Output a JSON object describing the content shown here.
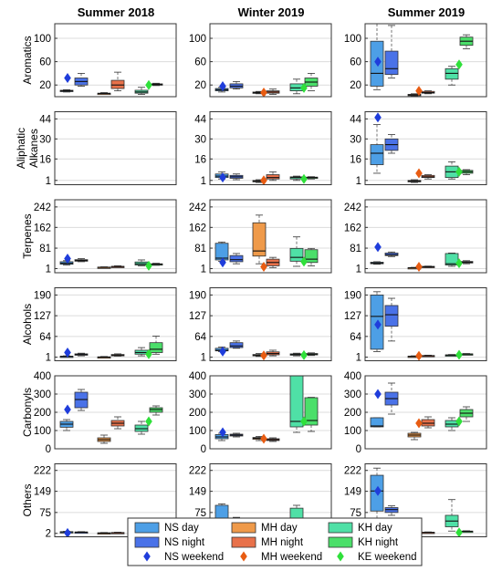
{
  "chart_data": {
    "type": "box",
    "columns": [
      "Summer 2018",
      "Winter 2019",
      "Summer 2019"
    ],
    "groups": [
      "NS day",
      "NS night",
      "MH day",
      "MH night",
      "KH day",
      "KH night"
    ],
    "weekend_markers": [
      "NS weekend",
      "MH weekend",
      "KE weekend"
    ],
    "colors": {
      "NS day": "#4d9fe6",
      "NS night": "#4a72e8",
      "MH day": "#ef9a4a",
      "MH night": "#e8714a",
      "KH day": "#4fe0a6",
      "KH night": "#4bdf6a",
      "NS weekend": "#1f3ddb",
      "MH weekend": "#e85c12",
      "KE weekend": "#2fe03a"
    },
    "panels": [
      {
        "label": "Aromatics",
        "yticks": [
          20,
          60,
          100
        ],
        "tick_labels": [
          "20",
          "60",
          "100"
        ],
        "ylim": [
          0,
          125
        ],
        "cells": [
          {
            "boxes": [
              [
                8,
                9,
                10,
                11,
                12
              ],
              [
                18,
                20,
                26,
                32,
                40
              ],
              [
                4,
                5,
                5.5,
                6,
                7
              ],
              [
                10,
                14,
                20,
                28,
                42
              ],
              [
                4,
                6,
                8,
                11,
                16
              ],
              [
                19,
                20,
                21,
                22,
                23
              ]
            ],
            "weekend": [
              32,
              null,
              20
            ]
          },
          {
            "boxes": [
              [
                8,
                10,
                12,
                14,
                16
              ],
              [
                13,
                15,
                18,
                22,
                26
              ],
              [
                5,
                6,
                7,
                8,
                9
              ],
              [
                4,
                6,
                8,
                10,
                13
              ],
              [
                5,
                10,
                15,
                22,
                30
              ],
              [
                10,
                18,
                25,
                32,
                40
              ]
            ],
            "weekend": [
              18,
              7,
              15
            ]
          },
          {
            "boxes": [
              [
                12,
                18,
                40,
                95,
                125
              ],
              [
                32,
                38,
                48,
                78,
                122
              ],
              [
                1,
                2,
                3,
                4,
                5
              ],
              [
                5,
                6,
                7,
                9,
                10
              ],
              [
                20,
                30,
                40,
                48,
                52
              ],
              [
                82,
                88,
                95,
                102,
                106
              ]
            ],
            "weekend": [
              60,
              10,
              55
            ]
          }
        ]
      },
      {
        "label": "Aliphatic Alkanes",
        "yticks": [
          1,
          16,
          30,
          44
        ],
        "tick_labels": [
          "1",
          "16",
          "30",
          "44"
        ],
        "ylim": [
          -2,
          49
        ],
        "cells": [
          {
            "boxes": [
              null,
              null,
              null,
              null,
              null,
              null
            ],
            "weekend": [
              null,
              null,
              null
            ]
          },
          {
            "boxes": [
              [
                2,
                3,
                4,
                5.5,
                7
              ],
              [
                1.5,
                2.5,
                3.5,
                4.5,
                5.5
              ],
              [
                -0.5,
                0,
                0.5,
                1,
                1.5
              ],
              [
                1,
                2,
                3,
                5,
                7
              ],
              [
                1,
                2,
                3,
                3.5,
                4
              ],
              [
                2,
                2.5,
                3,
                3.3,
                3.6
              ]
            ],
            "weekend": [
              3,
              1,
              2
            ]
          },
          {
            "boxes": [
              [
                6,
                12,
                20,
                26,
                40
              ],
              [
                20,
                22,
                26,
                30,
                33
              ],
              [
                -0.5,
                0,
                0.5,
                1,
                1.5
              ],
              [
                2,
                3,
                3.5,
                4.5,
                5
              ],
              [
                2,
                3,
                7,
                11,
                14
              ],
              [
                5,
                6,
                7,
                8,
                8.5
              ]
            ],
            "weekend": [
              45,
              6,
              7
            ]
          }
        ]
      },
      {
        "label": "Terpenes",
        "yticks": [
          1,
          81,
          162,
          242
        ],
        "tick_labels": [
          "1",
          "81",
          "162",
          "242"
        ],
        "ylim": [
          -15,
          270
        ],
        "cells": [
          {
            "boxes": [
              [
                15,
                18,
                22,
                28,
                32
              ],
              [
                28,
                30,
                33,
                36,
                40
              ],
              [
                4,
                5,
                6,
                7,
                8
              ],
              [
                7,
                8,
                9,
                10,
                12
              ],
              [
                12,
                15,
                20,
                27,
                35
              ],
              [
                14,
                16,
                18,
                20,
                22
              ]
            ],
            "weekend": [
              40,
              null,
              12
            ]
          },
          {
            "boxes": [
              [
                30,
                35,
                42,
                100,
                105
              ],
              [
                20,
                28,
                36,
                52,
                60
              ],
              [
                20,
                50,
                70,
                180,
                210
              ],
              [
                5,
                12,
                25,
                38,
                45
              ],
              [
                10,
                30,
                45,
                80,
                125
              ],
              [
                12,
                25,
                38,
                75,
                80
              ]
            ],
            "weekend": [
              25,
              8,
              28
            ]
          },
          {
            "boxes": [
              [
                18,
                20,
                23,
                26,
                28
              ],
              [
                48,
                52,
                55,
                62,
                66
              ],
              [
                2,
                3,
                4,
                5,
                6
              ],
              [
                5,
                7,
                8,
                10,
                11
              ],
              [
                10,
                15,
                20,
                60,
                62
              ],
              [
                20,
                23,
                26,
                29,
                32
              ]
            ],
            "weekend": [
              85,
              8,
              22
            ]
          }
        ]
      },
      {
        "label": "Alcohols",
        "yticks": [
          1,
          64,
          127,
          190
        ],
        "tick_labels": [
          "1",
          "64",
          "127",
          "190"
        ],
        "ylim": [
          -10,
          212
        ],
        "cells": [
          {
            "boxes": [
              [
                1,
                2,
                3,
                4,
                5
              ],
              [
                5,
                7,
                9,
                11,
                13
              ],
              [
                -1,
                0,
                1,
                2,
                3
              ],
              [
                4,
                5,
                7,
                9,
                11
              ],
              [
                5,
                10,
                15,
                22,
                30
              ],
              [
                10,
                15,
                25,
                45,
                65
              ]
            ],
            "weekend": [
              15,
              null,
              10
            ]
          },
          {
            "boxes": [
              [
                18,
                20,
                22,
                28,
                32
              ],
              [
                28,
                30,
                35,
                45,
                50
              ],
              [
                3,
                5,
                7,
                9,
                12
              ],
              [
                5,
                8,
                12,
                17,
                22
              ],
              [
                5,
                7,
                9,
                11,
                13
              ],
              [
                6,
                8,
                10,
                12,
                14
              ]
            ],
            "weekend": [
              18,
              6,
              7
            ]
          },
          {
            "boxes": [
              [
                18,
                25,
                125,
                190,
                200
              ],
              [
                50,
                95,
                130,
                158,
                180
              ],
              [
                1,
                2,
                3,
                4,
                5
              ],
              [
                3,
                4,
                5,
                6,
                7
              ],
              [
                5,
                6,
                7,
                8,
                9
              ],
              [
                8,
                9,
                10,
                11,
                12
              ]
            ],
            "weekend": [
              100,
              5,
              8
            ]
          }
        ]
      },
      {
        "label": "Carbonyls",
        "yticks": [
          0,
          100,
          200,
          300,
          400
        ],
        "tick_labels": [
          "0",
          "100",
          "200",
          "300",
          "400"
        ],
        "ylim": [
          0,
          400
        ],
        "cells": [
          {
            "boxes": [
              [
                100,
                118,
                135,
                150,
                160
              ],
              [
                210,
                225,
                270,
                310,
                325
              ],
              [
                30,
                40,
                50,
                60,
                75
              ],
              [
                110,
                125,
                140,
                155,
                175
              ],
              [
                80,
                95,
                110,
                130,
                150
              ],
              [
                185,
                200,
                215,
                225,
                235
              ]
            ],
            "weekend": [
              215,
              null,
              150
            ]
          },
          {
            "boxes": [
              [
                45,
                55,
                65,
                78,
                85
              ],
              [
                65,
                70,
                75,
                80,
                85
              ],
              [
                45,
                52,
                58,
                62,
                68
              ],
              [
                40,
                45,
                50,
                55,
                60
              ],
              [
                90,
                120,
                150,
                400,
                400
              ],
              [
                95,
                130,
                155,
                280,
                282
              ]
            ],
            "weekend": [
              90,
              55,
              150
            ]
          },
          {
            "boxes": [
              [
                120,
                120,
                125,
                170,
                170
              ],
              [
                190,
                240,
                275,
                310,
                360
              ],
              [
                50,
                65,
                75,
                85,
                90
              ],
              [
                115,
                125,
                140,
                160,
                175
              ],
              [
                100,
                120,
                135,
                155,
                170
              ],
              [
                150,
                175,
                195,
                215,
                230
              ]
            ],
            "weekend": [
              300,
              140,
              150
            ]
          }
        ]
      },
      {
        "label": "Others",
        "yticks": [
          2,
          75,
          149,
          222
        ],
        "tick_labels": [
          "2",
          "75",
          "149",
          "222"
        ],
        "ylim": [
          -10,
          245
        ],
        "cells": [
          {
            "boxes": [
              [
                5,
                6,
                7,
                8,
                9
              ],
              [
                4,
                5,
                6,
                7,
                8
              ],
              [
                1,
                2,
                3,
                4,
                5
              ],
              [
                2,
                3,
                4,
                5,
                6
              ],
              [
                6,
                10,
                18,
                24,
                28
              ],
              [
                2,
                4,
                6,
                8,
                10
              ]
            ],
            "weekend": [
              3,
              null,
              5
            ]
          },
          {
            "boxes": [
              [
                20,
                30,
                45,
                100,
                105
              ],
              [
                40,
                45,
                50,
                55,
                58
              ],
              [
                1,
                2,
                3,
                4,
                5
              ],
              [
                2,
                3,
                4,
                5,
                6
              ],
              [
                20,
                35,
                55,
                90,
                100
              ],
              [
                20,
                25,
                30,
                35,
                40
              ]
            ],
            "weekend": [
              35,
              4,
              30
            ]
          },
          {
            "boxes": [
              [
                35,
                80,
                150,
                205,
                230
              ],
              [
                65,
                75,
                85,
                92,
                98
              ],
              [
                1,
                2,
                3,
                4,
                5
              ],
              [
                3,
                4,
                5,
                6,
                7
              ],
              [
                10,
                25,
                45,
                65,
                120
              ],
              [
                7,
                8,
                9,
                10,
                11
              ]
            ],
            "weekend": [
              150,
              6,
              5
            ]
          }
        ]
      }
    ],
    "legend": {
      "placement": "bottom",
      "entries": [
        "NS day",
        "MH day",
        "KH day",
        "NS night",
        "MH night",
        "KH night",
        "NS weekend",
        "MH weekend",
        "KE weekend"
      ]
    }
  }
}
